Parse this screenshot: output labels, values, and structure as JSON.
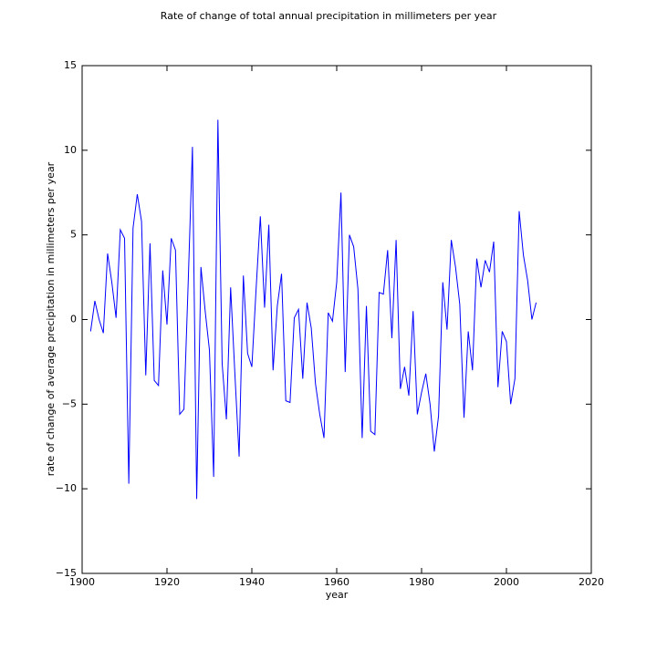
{
  "chart_data": {
    "type": "line",
    "title": "Rate of change of total annual precipitation in millimeters per year",
    "xlabel": "year",
    "ylabel": "rate of change of average precipitation in millimeters per year",
    "x": [
      1902,
      1903,
      1904,
      1905,
      1906,
      1907,
      1908,
      1909,
      1910,
      1911,
      1912,
      1913,
      1914,
      1915,
      1916,
      1917,
      1918,
      1919,
      1920,
      1921,
      1922,
      1923,
      1924,
      1925,
      1926,
      1927,
      1928,
      1929,
      1930,
      1931,
      1932,
      1933,
      1934,
      1935,
      1936,
      1937,
      1938,
      1939,
      1940,
      1941,
      1942,
      1943,
      1944,
      1945,
      1946,
      1947,
      1948,
      1949,
      1950,
      1951,
      1952,
      1953,
      1954,
      1955,
      1956,
      1957,
      1958,
      1959,
      1960,
      1961,
      1962,
      1963,
      1964,
      1965,
      1966,
      1967,
      1968,
      1969,
      1970,
      1971,
      1972,
      1973,
      1974,
      1975,
      1976,
      1977,
      1978,
      1979,
      1980,
      1981,
      1982,
      1983,
      1984,
      1985,
      1986,
      1987,
      1988,
      1989,
      1990,
      1991,
      1992,
      1993,
      1994,
      1995,
      1996,
      1997,
      1998,
      1999,
      2000,
      2001,
      2002,
      2003,
      2004,
      2005,
      2006,
      2007
    ],
    "series": [
      {
        "color": "#0000ff",
        "values": [
          -0.7,
          1.1,
          0.0,
          -0.8,
          3.9,
          2.2,
          0.1,
          5.3,
          4.8,
          -9.7,
          5.4,
          7.4,
          5.8,
          -3.3,
          4.5,
          -3.6,
          -3.9,
          2.9,
          -0.3,
          4.8,
          4.1,
          -5.6,
          -5.3,
          2.2,
          10.2,
          -10.6,
          3.1,
          0.5,
          -1.8,
          -9.3,
          11.8,
          -2.6,
          -5.9,
          1.9,
          -3.2,
          -8.1,
          2.6,
          -2.0,
          -2.8,
          1.8,
          6.1,
          0.7,
          5.6,
          -3.0,
          0.8,
          2.7,
          -4.8,
          -4.9,
          0.1,
          0.6,
          -3.5,
          1.0,
          -0.5,
          -3.8,
          -5.6,
          -7.0,
          0.4,
          -0.1,
          2.2,
          7.5,
          -3.1,
          5.0,
          4.3,
          1.8,
          -7.0,
          0.8,
          -6.6,
          -6.8,
          1.6,
          1.5,
          4.1,
          -1.1,
          4.7,
          -4.1,
          -2.8,
          -4.5,
          0.5,
          -5.6,
          -4.3,
          -3.2,
          -5.0,
          -7.8,
          -5.7,
          2.2,
          -0.6,
          4.7,
          3.1,
          0.9,
          -5.8,
          -0.7,
          -3.0,
          3.6,
          1.9,
          3.5,
          2.8,
          4.6,
          -4.0,
          -0.7,
          -1.3,
          -5.0,
          -3.5,
          6.4,
          3.8,
          2.3,
          0.0,
          1.0
        ]
      }
    ],
    "xlim": [
      1900,
      2020
    ],
    "xticks": [
      1900,
      1920,
      1940,
      1960,
      1980,
      2000,
      2020
    ],
    "ylim": [
      -15,
      15
    ],
    "yticks": [
      {
        "value": -15,
        "label": "−15"
      },
      {
        "value": -10,
        "label": "−10"
      },
      {
        "value": -5,
        "label": "−5"
      },
      0,
      5,
      10,
      15
    ],
    "grid": false
  }
}
